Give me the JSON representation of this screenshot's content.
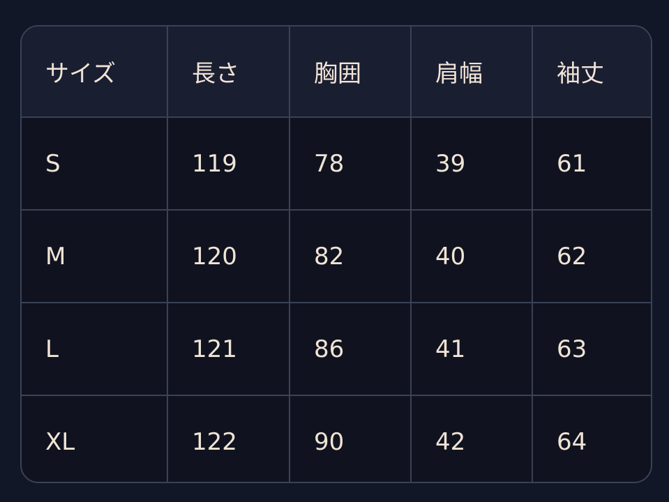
{
  "headers": [
    "サイズ",
    "長さ",
    "胸囲",
    "肩幅",
    "袖丈"
  ],
  "rows": [
    [
      "S",
      "119",
      "78",
      "39",
      "61"
    ],
    [
      "M",
      "120",
      "82",
      "40",
      "62"
    ],
    [
      "L",
      "121",
      "86",
      "41",
      "63"
    ],
    [
      "XL",
      "122",
      "90",
      "42",
      "64"
    ]
  ]
}
